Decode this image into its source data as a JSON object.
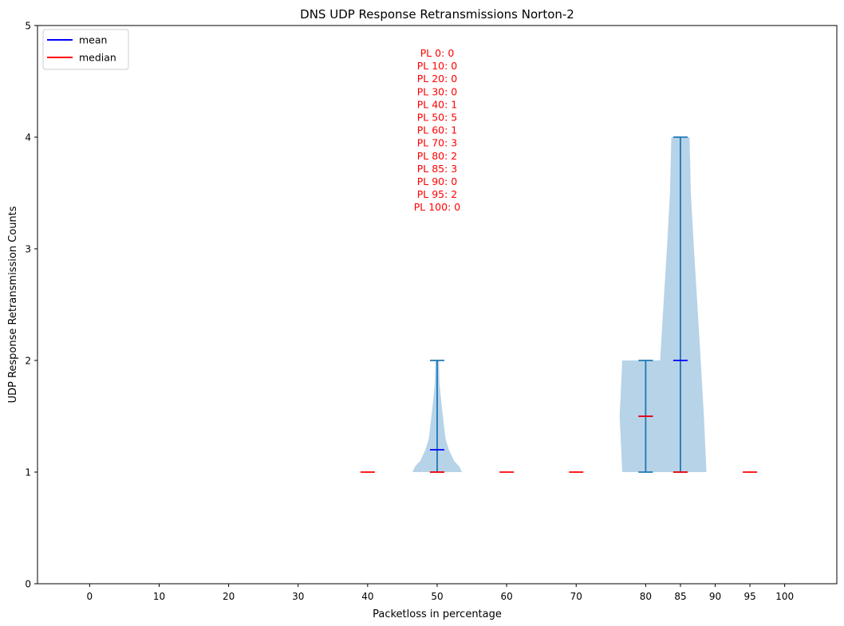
{
  "chart_data": {
    "type": "violin",
    "title": "DNS UDP Response Retransmissions Norton-2",
    "xlabel": "Packetloss in percentage",
    "ylabel": "UDP Response Retransmission Counts",
    "ylim": [
      0,
      5
    ],
    "xlim": [
      -7.5,
      107.5
    ],
    "yticks": [
      0,
      1,
      2,
      3,
      4,
      5
    ],
    "xticks": [
      0,
      10,
      20,
      30,
      40,
      50,
      60,
      70,
      80,
      85,
      90,
      95,
      100
    ],
    "grid": false,
    "legend_position": "top-left",
    "legend": [
      {
        "label": "mean",
        "color": "#0000ff"
      },
      {
        "label": "median",
        "color": "#ff0000"
      }
    ],
    "annotation": {
      "color": "#ff0000",
      "lines": [
        "PL 0: 0",
        "PL 10: 0",
        "PL 20: 0",
        "PL 30: 0",
        "PL 40: 1",
        "PL 50: 5",
        "PL 60: 1",
        "PL 70: 3",
        "PL 80: 2",
        "PL 85: 3",
        "PL 90: 0",
        "PL 95: 2",
        "PL 100: 0"
      ]
    },
    "violin_color": "#b7d3e8",
    "stat_color": "#1f77b4",
    "groups": [
      {
        "x": 40,
        "min": 1,
        "max": 1,
        "mean": 1,
        "median": 1,
        "density": []
      },
      {
        "x": 50,
        "min": 1,
        "max": 2,
        "mean": 1.2,
        "median": 1,
        "density": [
          [
            1.0,
            0.95
          ],
          [
            1.05,
            0.85
          ],
          [
            1.1,
            0.65
          ],
          [
            1.2,
            0.45
          ],
          [
            1.3,
            0.32
          ],
          [
            1.4,
            0.27
          ],
          [
            1.5,
            0.22
          ],
          [
            1.6,
            0.17
          ],
          [
            1.7,
            0.13
          ],
          [
            1.8,
            0.09
          ],
          [
            1.9,
            0.08
          ],
          [
            2.0,
            0.07
          ]
        ]
      },
      {
        "x": 60,
        "min": 1,
        "max": 1,
        "mean": 1,
        "median": 1,
        "density": []
      },
      {
        "x": 70,
        "min": 1,
        "max": 1,
        "mean": 1,
        "median": 1,
        "density": []
      },
      {
        "x": 80,
        "min": 1,
        "max": 2,
        "mean": 1.5,
        "median": 1.5,
        "density": [
          [
            1.0,
            0.9
          ],
          [
            1.25,
            0.95
          ],
          [
            1.5,
            1.0
          ],
          [
            1.75,
            0.95
          ],
          [
            2.0,
            0.9
          ]
        ]
      },
      {
        "x": 85,
        "min": 1,
        "max": 4,
        "mean": 2,
        "median": 1,
        "density": [
          [
            1.0,
            1.0
          ],
          [
            1.5,
            0.9
          ],
          [
            2.0,
            0.78
          ],
          [
            2.5,
            0.65
          ],
          [
            3.0,
            0.52
          ],
          [
            3.5,
            0.4
          ],
          [
            4.0,
            0.35
          ]
        ]
      },
      {
        "x": 95,
        "min": 1,
        "max": 1,
        "mean": 1,
        "median": 1,
        "density": []
      }
    ]
  }
}
